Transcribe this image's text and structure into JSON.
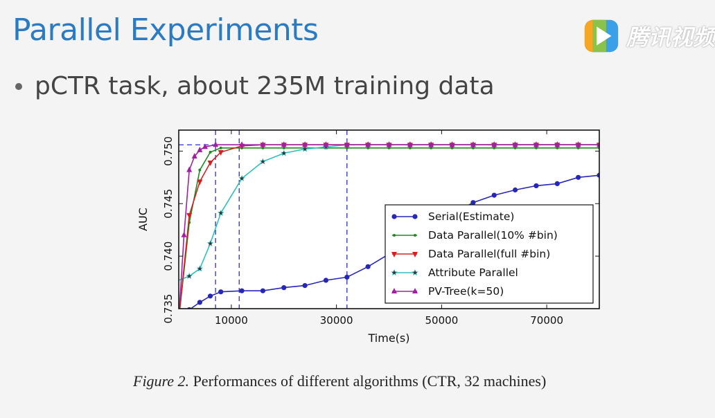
{
  "slide": {
    "title": "Parallel Experiments",
    "bullet": "pCTR task, about 235M training data",
    "watermark_text": "腾讯视频",
    "watermark_icon": "tencent-video-logo"
  },
  "caption": {
    "figure_label": "Figure 2.",
    "text": " Performances of different algorithms (CTR, 32 machines)"
  },
  "chart_data": {
    "type": "line",
    "title": "",
    "xlabel": "Time(s)",
    "ylabel": "AUC",
    "xlim": [
      0,
      80000
    ],
    "ylim": [
      0.735,
      0.752
    ],
    "xticks": [
      10000,
      30000,
      50000,
      70000
    ],
    "xtick_labels": [
      "10000",
      "30000",
      "50000",
      "70000"
    ],
    "yticks": [
      0.735,
      0.74,
      0.745,
      0.75
    ],
    "ytick_labels": [
      "0.735",
      "0.740",
      "0.745",
      "0.750"
    ],
    "grid": false,
    "legend_position": "lower-right",
    "reference_lines": {
      "horizontal_y": 0.7506,
      "vertical_x": [
        7000,
        11500,
        32000
      ],
      "color": "#2a2ad6",
      "style": "dashed"
    },
    "series": [
      {
        "name": "Serial(Estimate)",
        "color": "#2626b8",
        "marker": "circle",
        "x": [
          2000,
          4000,
          6000,
          8000,
          12000,
          16000,
          20000,
          24000,
          28000,
          32000,
          36000,
          40000,
          44000,
          48000,
          52000,
          56000,
          60000,
          64000,
          68000,
          72000,
          76000,
          80000
        ],
        "y": [
          0.7349,
          0.7356,
          0.7362,
          0.7366,
          0.7367,
          0.7367,
          0.737,
          0.7372,
          0.7377,
          0.738,
          0.739,
          0.7402,
          0.7415,
          0.7428,
          0.744,
          0.7451,
          0.7458,
          0.7463,
          0.7467,
          0.7469,
          0.7475,
          0.7477
        ]
      },
      {
        "name": "Data Parallel(10% #bin)",
        "color": "#1e8a1e",
        "marker": "dot",
        "x": [
          0,
          2000,
          4000,
          6000,
          8000,
          12000,
          16000,
          20000,
          24000,
          28000,
          32000,
          36000,
          40000,
          44000,
          48000,
          52000,
          56000,
          60000,
          64000,
          68000,
          72000,
          76000,
          80000
        ],
        "y": [
          0.734,
          0.7432,
          0.7482,
          0.7499,
          0.7503,
          0.7503,
          0.7503,
          0.7503,
          0.7503,
          0.7503,
          0.7503,
          0.7503,
          0.7503,
          0.7503,
          0.7503,
          0.7503,
          0.7503,
          0.7503,
          0.7503,
          0.7503,
          0.7503,
          0.7503,
          0.7503
        ]
      },
      {
        "name": "Data Parallel(full #bin)",
        "color": "#d42020",
        "marker": "triangle-down",
        "x": [
          0,
          2000,
          4000,
          6000,
          8000,
          12000,
          16000,
          20000,
          24000,
          28000,
          32000,
          36000,
          40000,
          44000,
          48000,
          52000,
          56000,
          60000,
          64000,
          68000,
          72000,
          76000,
          80000
        ],
        "y": [
          0.734,
          0.7439,
          0.7471,
          0.7489,
          0.7499,
          0.7505,
          0.7506,
          0.7506,
          0.7506,
          0.7506,
          0.7506,
          0.7506,
          0.7506,
          0.7506,
          0.7506,
          0.7506,
          0.7506,
          0.7506,
          0.7506,
          0.7506,
          0.7506,
          0.7506,
          0.7506
        ]
      },
      {
        "name": "Attribute Parallel",
        "color": "#2ec0c0",
        "marker": "star",
        "x": [
          0,
          2000,
          4000,
          6000,
          8000,
          12000,
          16000,
          20000,
          24000,
          28000,
          32000,
          36000,
          40000,
          44000,
          48000,
          52000,
          56000,
          60000,
          64000,
          68000,
          72000,
          76000,
          80000
        ],
        "y": [
          0.7377,
          0.7381,
          0.7388,
          0.7412,
          0.7441,
          0.7474,
          0.749,
          0.7498,
          0.7502,
          0.7504,
          0.7506,
          0.7506,
          0.7506,
          0.7506,
          0.7506,
          0.7506,
          0.7506,
          0.7506,
          0.7506,
          0.7506,
          0.7506,
          0.7506,
          0.7506
        ]
      },
      {
        "name": "PV-Tree(k=50)",
        "color": "#a020a0",
        "marker": "triangle-up",
        "x": [
          0,
          1000,
          2000,
          3000,
          4000,
          5000,
          7000,
          12000,
          16000,
          20000,
          24000,
          28000,
          32000,
          36000,
          40000,
          44000,
          48000,
          52000,
          56000,
          60000,
          64000,
          68000,
          72000,
          76000,
          80000
        ],
        "y": [
          0.734,
          0.742,
          0.7482,
          0.7495,
          0.7501,
          0.7504,
          0.7506,
          0.7506,
          0.7506,
          0.7506,
          0.7506,
          0.7506,
          0.7506,
          0.7506,
          0.7506,
          0.7506,
          0.7506,
          0.7506,
          0.7506,
          0.7506,
          0.7506,
          0.7506,
          0.7506,
          0.7506,
          0.7506
        ]
      }
    ]
  }
}
